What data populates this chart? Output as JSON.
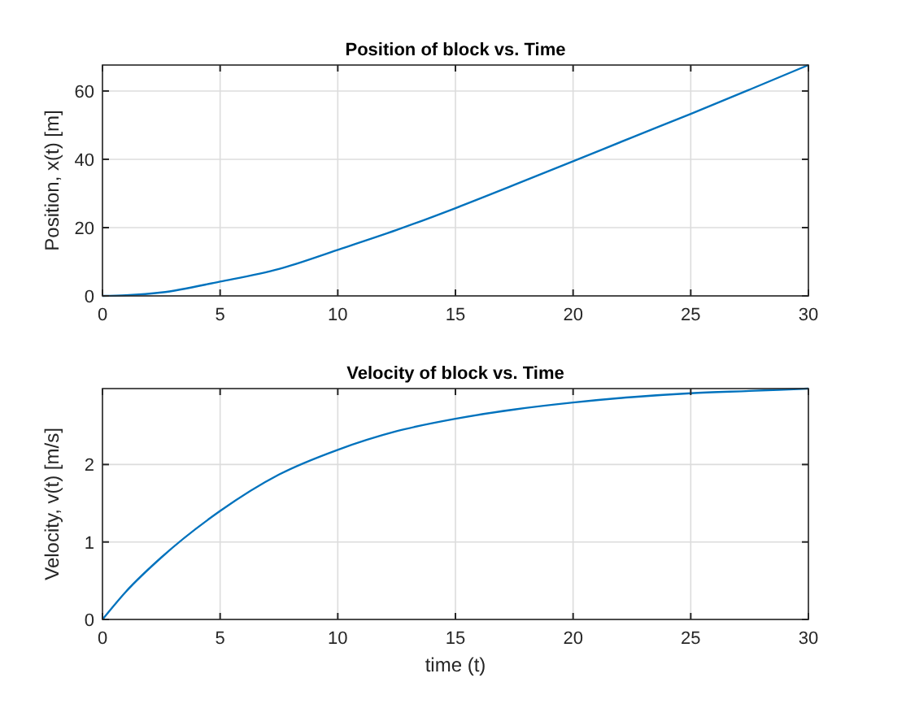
{
  "chart_data": [
    {
      "type": "line",
      "title": "Position of block vs. Time",
      "ylabel": "Position, x(t) [m]",
      "x": [
        0,
        1,
        2.5,
        5,
        7.5,
        10,
        12.5,
        15,
        17.5,
        20,
        22.5,
        25,
        27.5,
        30
      ],
      "series": [
        {
          "color": "#0072bd",
          "values": [
            0,
            0.2,
            1.0,
            4.2,
            7.9,
            13.5,
            19.3,
            25.7,
            32.5,
            39.4,
            46.4,
            53.3,
            60.4,
            67.6
          ]
        }
      ],
      "xlim": [
        0,
        30
      ],
      "xticks": [
        0,
        5,
        10,
        15,
        20,
        25,
        30
      ],
      "ylim": [
        0,
        67.6
      ],
      "yticks": [
        0,
        20,
        40,
        60
      ],
      "grid": true
    },
    {
      "type": "line",
      "title": "Velocity of block vs. Time",
      "xlabel": "time (t)",
      "ylabel": "Velocity, v(t) [m/s]",
      "x": [
        0,
        1,
        2.5,
        5,
        7.5,
        10,
        12.5,
        15,
        17.5,
        20,
        22.5,
        25,
        27.5,
        30
      ],
      "series": [
        {
          "color": "#0072bd",
          "values": [
            0,
            0.36,
            0.8,
            1.4,
            1.87,
            2.19,
            2.43,
            2.59,
            2.71,
            2.8,
            2.87,
            2.92,
            2.95,
            2.98
          ]
        }
      ],
      "xlim": [
        0,
        30
      ],
      "xticks": [
        0,
        5,
        10,
        15,
        20,
        25,
        30
      ],
      "ylim": [
        0,
        2.98
      ],
      "yticks": [
        0,
        1,
        2
      ],
      "grid": true
    }
  ]
}
